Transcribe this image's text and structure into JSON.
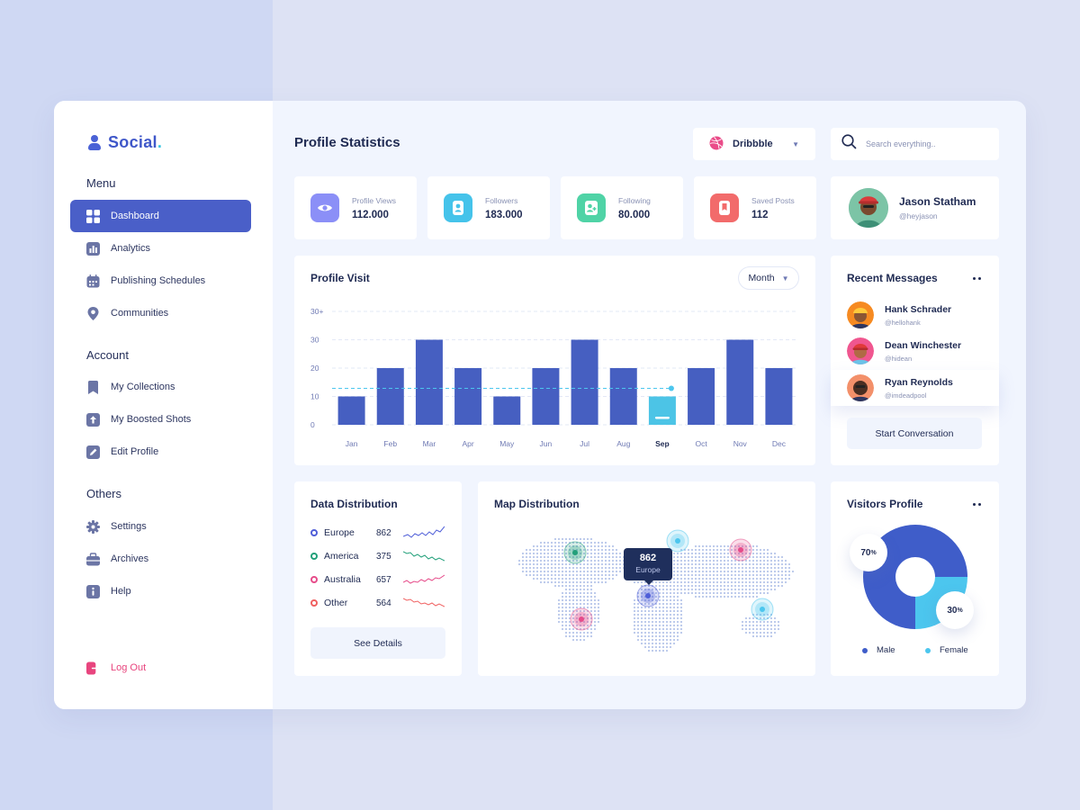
{
  "brand": {
    "name": "Social",
    "dot": "."
  },
  "sidebar": {
    "menu_heading": "Menu",
    "menu_items": [
      {
        "label": "Dashboard",
        "icon": "grid-icon",
        "active": true
      },
      {
        "label": "Analytics",
        "icon": "bar-chart-icon"
      },
      {
        "label": "Publishing Schedules",
        "icon": "calendar-icon"
      },
      {
        "label": "Communities",
        "icon": "map-pin-icon"
      }
    ],
    "account_heading": "Account",
    "account_items": [
      {
        "label": "My Collections",
        "icon": "bookmark-icon"
      },
      {
        "label": "My Boosted Shots",
        "icon": "arrow-up-icon"
      },
      {
        "label": "Edit Profile",
        "icon": "pencil-icon"
      }
    ],
    "others_heading": "Others",
    "others_items": [
      {
        "label": "Settings",
        "icon": "gear-icon"
      },
      {
        "label": "Archives",
        "icon": "briefcase-icon"
      },
      {
        "label": "Help",
        "icon": "info-icon"
      }
    ],
    "logout": "Log Out"
  },
  "header": {
    "title": "Profile Statistics",
    "platform_select": "Dribbble",
    "search_placeholder": "Search everything.."
  },
  "stats": [
    {
      "label": "Profile Views",
      "value": "112.000",
      "color": "#8b8ff7",
      "icon": "eye-icon"
    },
    {
      "label": "Followers",
      "value": "183.000",
      "color": "#45c3ea",
      "icon": "user-icon"
    },
    {
      "label": "Following",
      "value": "80.000",
      "color": "#4fd3a6",
      "icon": "user-plus-icon"
    },
    {
      "label": "Saved Posts",
      "value": "112",
      "color": "#f26b6b",
      "icon": "bookmark-icon"
    }
  ],
  "profile": {
    "name": "Jason Statham",
    "handle": "@heyjason"
  },
  "profile_visit": {
    "title": "Profile  Visit",
    "period": "Month",
    "selected_month": "Sep"
  },
  "chart_data": {
    "type": "bar",
    "title": "Profile  Visit",
    "categories": [
      "Jan",
      "Feb",
      "Mar",
      "Apr",
      "May",
      "Jun",
      "Jul",
      "Aug",
      "Sep",
      "Oct",
      "Nov",
      "Dec"
    ],
    "values": [
      10,
      20,
      30,
      20,
      10,
      20,
      30,
      20,
      10,
      20,
      30,
      20
    ],
    "y_ticks": [
      "0",
      "10",
      "20",
      "30",
      "30+"
    ],
    "ylim": [
      0,
      40
    ],
    "highlight": "Sep",
    "bar_color": "#465fc1",
    "highlight_color": "#4cc4e6",
    "grid": true
  },
  "recent_messages": {
    "title": "Recent Messages",
    "items": [
      {
        "name": "Hank Schrader",
        "handle": "@hellohank",
        "color": "#f68a21"
      },
      {
        "name": "Dean Winchester",
        "handle": "@hidean",
        "color": "#f0568f"
      },
      {
        "name": "Ryan Reynolds",
        "handle": "@imdeadpool",
        "color": "#f3906a"
      }
    ],
    "button": "Start Conversation"
  },
  "data_distribution": {
    "title": "Data Distribution",
    "items": [
      {
        "name": "Europe",
        "value": "862",
        "color": "#4f5ed8"
      },
      {
        "name": "America",
        "value": "375",
        "color": "#22a07a"
      },
      {
        "name": "Australia",
        "value": "657",
        "color": "#e64c8a"
      },
      {
        "name": "Other",
        "value": "564",
        "color": "#f06060"
      }
    ],
    "button": "See Details"
  },
  "map": {
    "title": "Map Distribution",
    "tooltip_value": "862",
    "tooltip_label": "Europe"
  },
  "visitors": {
    "title": "Visitors Profile",
    "male_pct": "70",
    "female_pct": "30",
    "pct_suffix": "%",
    "male_label": "Male",
    "female_label": "Female",
    "male_color": "#3f5dc9",
    "female_color": "#4cc6ee"
  }
}
